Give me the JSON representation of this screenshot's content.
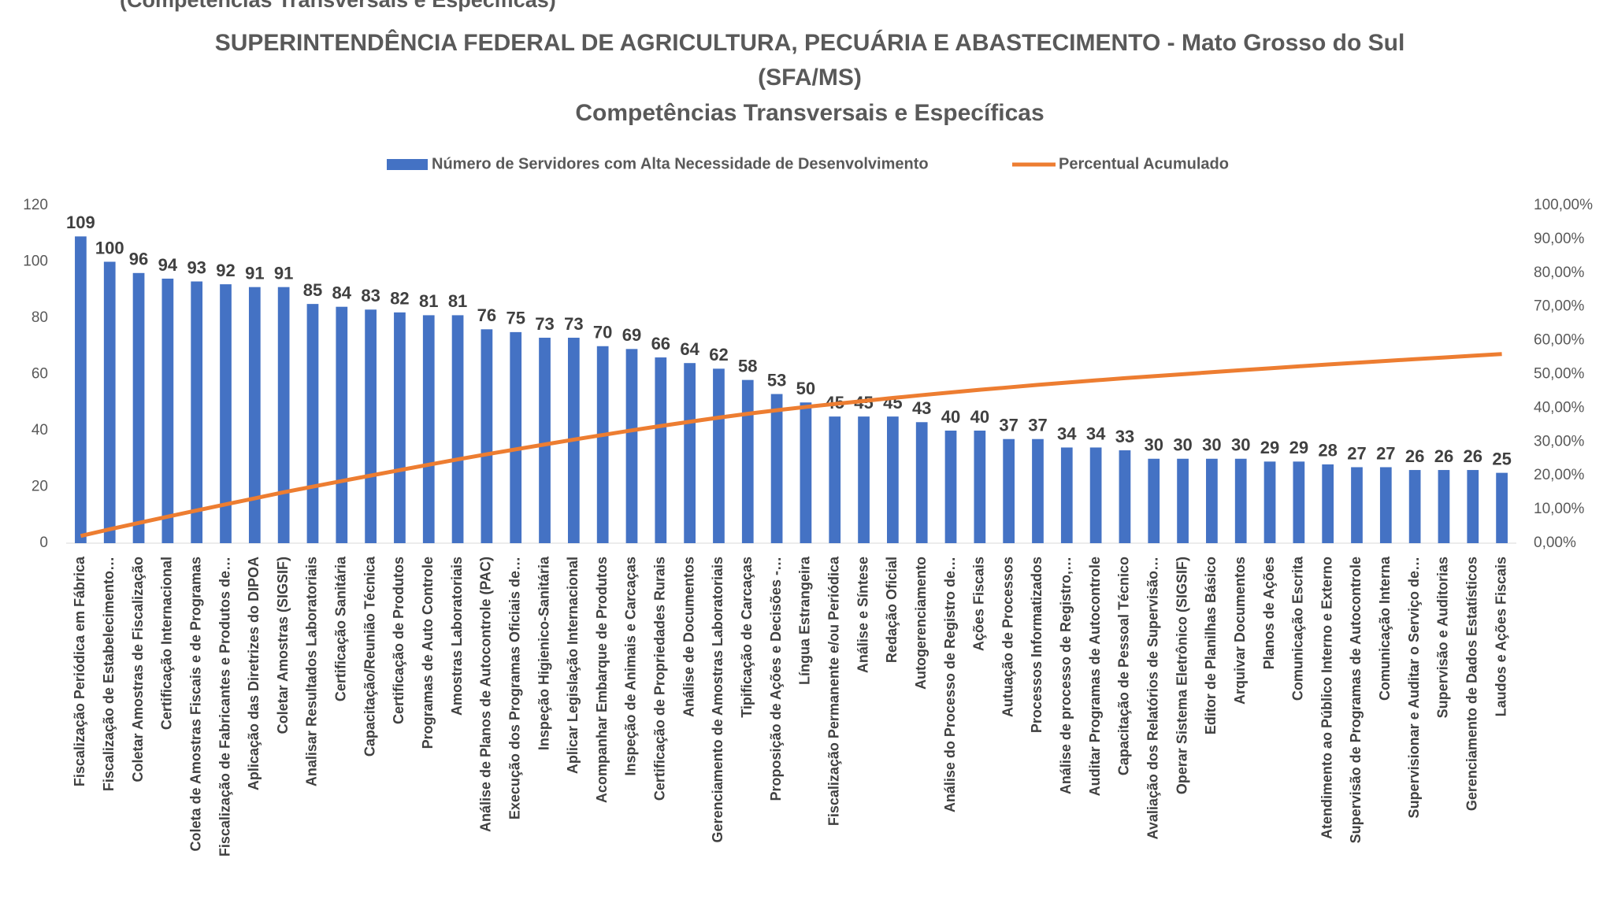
{
  "top_caption": "(Competências Transversais e Específicas)",
  "chart_data": {
    "type": "pareto",
    "title": [
      "SUPERINTENDÊNCIA FEDERAL DE AGRICULTURA, PECUÁRIA E ABASTECIMENTO - Mato Grosso do Sul",
      "(SFA/MS)"
    ],
    "subtitle": "Competências Transversais e Específicas",
    "categories": [
      "Fiscalização Periódica em Fábrica",
      "Fiscalização de Estabelecimento…",
      "Coletar Amostras de Fiscalização",
      "Certificação Internacional",
      "Coleta de Amostras Fiscais e de Programas",
      "Fiscalização de Fabricantes e Produtos de…",
      "Aplicação das Diretrizes do DIPOA",
      "Coletar Amostras (SIGSIF)",
      "Analisar Resultados Laboratoriais",
      "Certificação Sanitária",
      "Capacitação/Reunião Técnica",
      "Certificação de Produtos",
      "Programas de Auto Controle",
      "Amostras Laboratoriais",
      "Análise de Planos de Autocontrole (PAC)",
      "Execução dos Programas Oficiais de…",
      "Inspeção Higienico-Sanitária",
      "Aplicar Legislação Internacional",
      "Acompanhar Embarque de Produtos",
      "Inspeção de Animais e Carcaças",
      "Certificação de Propriedades Rurais",
      "Análise de Documentos",
      "Gerenciamento de Amostras Laboratoriais",
      "Tipificação de Carcaças",
      "Proposição de Ações e Decisões -…",
      "Língua Estrangeira",
      "Fiscalização Permanente e/ou  Periódica",
      "Análise e Síntese",
      "Redação Oficial",
      "Autogerenciamento",
      "Análise do Processo de Registro de…",
      "Ações Fiscais",
      "Autuação de Processos",
      "Processos Informatizados",
      "Análise de processo de Registro,…",
      "Auditar Programas de Autocontrole",
      "Capacitação de Pessoal Técnico",
      "Avaliação dos Relatórios de Supervisão…",
      "Operar Sistema Eletrônico (SIGSIF)",
      "Editor de Planilhas Básico",
      "Arquivar Documentos",
      "Planos de Ações",
      "Comunicação Escrita",
      "Atendimento ao Público Interno e Externo",
      "Supervisão de Programas de Autocontrole",
      "Comunicação Interna",
      "Supervisionar e Auditar o Serviço de…",
      "Supervisão e Auditorias",
      "Gerenciamento de Dados Estatísticos",
      "Laudos e Ações Fiscais"
    ],
    "series": [
      {
        "name": "Número de Servidores com Alta Necessidade de Desenvolvimento",
        "color": "#4472c4",
        "type": "bar",
        "values": [
          109,
          100,
          96,
          94,
          93,
          92,
          91,
          91,
          85,
          84,
          83,
          82,
          81,
          81,
          76,
          75,
          73,
          73,
          70,
          69,
          66,
          64,
          62,
          58,
          53,
          50,
          45,
          45,
          45,
          43,
          40,
          40,
          37,
          37,
          34,
          34,
          33,
          30,
          30,
          30,
          30,
          29,
          29,
          28,
          27,
          27,
          26,
          26,
          26,
          25
        ]
      },
      {
        "name": "Percentual Acumulado",
        "color": "#ed7d31",
        "type": "line",
        "axis": "y2",
        "values": [
          2.14,
          4.11,
          6.0,
          7.85,
          9.68,
          11.49,
          13.28,
          15.07,
          16.74,
          18.39,
          20.02,
          21.64,
          23.23,
          24.82,
          26.32,
          27.79,
          29.23,
          30.66,
          32.04,
          33.4,
          34.7,
          35.96,
          37.18,
          38.32,
          39.36,
          40.34,
          41.23,
          42.11,
          43.0,
          43.84,
          44.63,
          45.42,
          46.14,
          46.87,
          47.54,
          48.21,
          48.86,
          49.45,
          50.04,
          50.63,
          51.22,
          51.79,
          52.36,
          52.91,
          53.44,
          53.97,
          54.48,
          54.99,
          55.51,
          56.0
        ]
      }
    ],
    "ylim": [
      0,
      120
    ],
    "yticks": [
      0,
      20,
      40,
      60,
      80,
      100,
      120
    ],
    "y2lim": [
      0,
      100
    ],
    "y2ticks": [
      {
        "value": 0,
        "label": "0,00%"
      },
      {
        "value": 10,
        "label": "10,00%"
      },
      {
        "value": 20,
        "label": "20,00%"
      },
      {
        "value": 30,
        "label": "30,00%"
      },
      {
        "value": 40,
        "label": "40,00%"
      },
      {
        "value": 50,
        "label": "50,00%"
      },
      {
        "value": 60,
        "label": "60,00%"
      },
      {
        "value": 70,
        "label": "70,00%"
      },
      {
        "value": 80,
        "label": "80,00%"
      },
      {
        "value": 90,
        "label": "90,00%"
      },
      {
        "value": 100,
        "label": "100,00%"
      }
    ],
    "grid": false,
    "legend": "top"
  }
}
